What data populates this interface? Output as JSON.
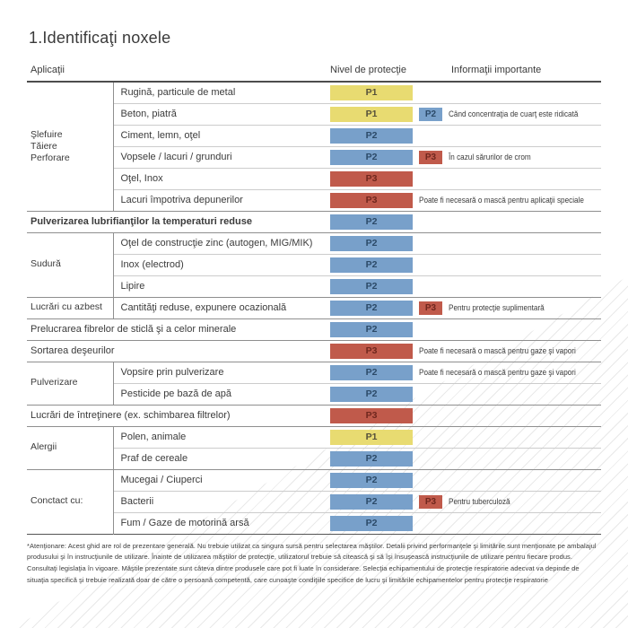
{
  "page": {
    "title": "1.Identificaţi noxele",
    "columns": {
      "applications": "Aplicaţii",
      "protection": "Nivel de protecţie",
      "info": "Informaţii importante"
    },
    "footnote": "*Atenţionare: Acest ghid are rol de prezentare generală. Nu trebuie utilizat ca singura sursă pentru selectarea măştilor. Detalii privind performanţele şi limitările sunt menţionate pe ambalajul produsului şi în instrucţiunile de utilizare. Înainte de utilizarea măştilor de protecţie, utilizatorul trebuie să citească şi să îşi însuşească instrucţiunile de utilizare pentru fiecare produs. Consultaţi legislaţia în vigoare. Măştile prezentate sunt câteva dintre produsele care pot fi luate în considerare. Selecţia echipamentului de protecţie respiratorie adecvat va depinde de situaţia specifică şi trebuie realizată doar de către o persoană competentă, care cunoaşte condiţiile specifice de lucru şi limitările echipamentelor pentru protecţie respiratorie"
  },
  "levels": {
    "P1": {
      "bg": "#e8db71",
      "fg": "#55503a"
    },
    "P2": {
      "bg": "#78a0ca",
      "fg": "#2c4a68"
    },
    "P3": {
      "bg": "#c05a4b",
      "fg": "#6f271e"
    }
  },
  "sections": [
    {
      "category": "Şlefuire\nTăiere\nPerforare",
      "items": [
        {
          "label": "Rugină, particule de metal",
          "level": "P1"
        },
        {
          "label": "Beton, piatră",
          "level": "P1",
          "level2": "P2",
          "note": "Când concentraţia de cuarţ este ridicată"
        },
        {
          "label": "Ciment, lemn, oţel",
          "level": "P2"
        },
        {
          "label": "Vopsele / lacuri / grunduri",
          "level": "P2",
          "level2": "P3",
          "note": "În cazul sărurilor de crom"
        },
        {
          "label": "Oţel, Inox",
          "level": "P3"
        },
        {
          "label": "Lacuri împotriva depunerilor",
          "level": "P3",
          "note": "Poate fi necesară o mască pentru aplicaţii speciale"
        }
      ]
    },
    {
      "category": null,
      "items": [
        {
          "label": "Pulverizarea lubrifianţilor la temperaturi reduse",
          "level": "P2",
          "bold": true
        }
      ]
    },
    {
      "category": "Sudură",
      "items": [
        {
          "label": "Oţel de construcţie zinc (autogen, MIG/MIK)",
          "level": "P2"
        },
        {
          "label": "Inox (electrod)",
          "level": "P2"
        },
        {
          "label": "Lipire",
          "level": "P2"
        }
      ]
    },
    {
      "category": "Lucrări cu azbest",
      "items": [
        {
          "label": "Cantităţi reduse, expunere ocazională",
          "level": "P2",
          "level2": "P3",
          "note": "Pentru protecţie suplimentară"
        }
      ]
    },
    {
      "category": null,
      "items": [
        {
          "label": "Prelucrarea fibrelor de sticlă şi a celor minerale",
          "level": "P2"
        }
      ]
    },
    {
      "category": null,
      "items": [
        {
          "label": "Sortarea deşeurilor",
          "level": "P3",
          "note": "Poate fi necesară o mască pentru gaze şi vapori"
        }
      ]
    },
    {
      "category": "Pulverizare",
      "items": [
        {
          "label": "Vopsire prin pulverizare",
          "level": "P2",
          "note": "Poate fi necesară o mască pentru gaze şi vapori"
        },
        {
          "label": "Pesticide pe bază de apă",
          "level": "P2"
        }
      ]
    },
    {
      "category": null,
      "items": [
        {
          "label": "Lucrări de întreţinere (ex. schimbarea filtrelor)",
          "level": "P3"
        }
      ]
    },
    {
      "category": "Alergii",
      "items": [
        {
          "label": "Polen, animale",
          "level": "P1"
        },
        {
          "label": "Praf de cereale",
          "level": "P2"
        }
      ]
    },
    {
      "category": "Conctact cu:",
      "items": [
        {
          "label": "Mucegai / Ciuperci",
          "level": "P2"
        },
        {
          "label": "Bacterii",
          "level": "P2",
          "level2": "P3",
          "note": "Pentru tuberculoză"
        },
        {
          "label": "Fum / Gaze de motorină arsă",
          "level": "P2"
        }
      ]
    }
  ]
}
